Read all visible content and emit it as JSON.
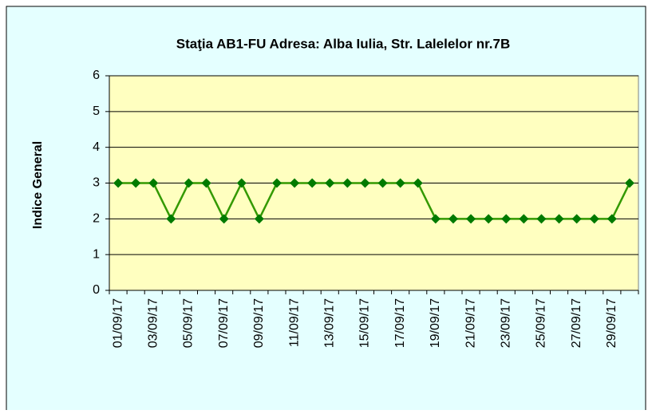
{
  "chart_data": {
    "type": "line",
    "title": "Staţia AB1-FU   Adresa: Alba Iulia, Str. Lalelelor nr.7B",
    "y_label": "Indice General",
    "categories": [
      "01/09/17",
      null,
      "03/09/17",
      null,
      "05/09/17",
      null,
      "07/09/17",
      null,
      "09/09/17",
      null,
      "11/09/17",
      null,
      "13/09/17",
      null,
      "15/09/17",
      null,
      "17/09/17",
      null,
      "19/09/17",
      null,
      "21/09/17",
      null,
      "23/09/17",
      null,
      "25/09/17",
      null,
      "27/09/17",
      null,
      "29/09/17",
      null
    ],
    "values": [
      3,
      3,
      3,
      2,
      3,
      3,
      2,
      3,
      2,
      3,
      3,
      3,
      3,
      3,
      3,
      3,
      3,
      3,
      2,
      2,
      2,
      2,
      2,
      2,
      2,
      2,
      2,
      2,
      2,
      3
    ],
    "color": "#339900",
    "marker_color": "#007a00",
    "ylim": [
      0,
      6
    ],
    "yticks": [
      0,
      1,
      2,
      3,
      4,
      5,
      6
    ],
    "grid": true
  }
}
